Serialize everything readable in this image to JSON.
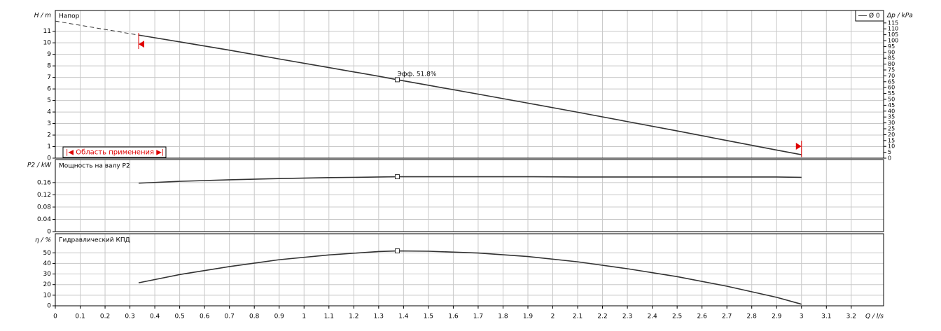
{
  "chart_data": [
    {
      "type": "line",
      "title": "Напор",
      "y_label": "H / m",
      "y2_label": "Δp / kPa",
      "x": [
        0.335,
        0.5,
        0.7,
        0.9,
        1.1,
        1.3,
        1.375,
        1.5,
        1.7,
        1.9,
        2.1,
        2.3,
        2.5,
        2.7,
        2.9,
        3.0
      ],
      "series": [
        {
          "name": "Ø 0",
          "color": "#333333",
          "values": [
            10.67,
            10.08,
            9.36,
            8.6,
            7.85,
            7.1,
            6.8,
            6.32,
            5.55,
            4.77,
            3.98,
            3.17,
            2.36,
            1.53,
            0.7,
            0.3
          ]
        }
      ],
      "extrapolation": {
        "x": [
          0,
          0.335
        ],
        "values": [
          11.88,
          10.67
        ]
      },
      "operating_x": 1.375,
      "annotation": "Эфф. 51.8%",
      "range": [
        0.335,
        3.0
      ],
      "range_label": "|◀ Область применения ▶|",
      "range_color": "#e00000",
      "ylim": [
        0,
        12.8
      ],
      "yticks": [
        0,
        1,
        2,
        3,
        4,
        5,
        6,
        7,
        8,
        9,
        10,
        11
      ],
      "y2lim": [
        0,
        125.6
      ],
      "y2ticks": [
        0,
        5,
        10,
        15,
        20,
        25,
        30,
        35,
        40,
        45,
        50,
        55,
        60,
        65,
        70,
        75,
        80,
        85,
        90,
        95,
        100,
        105,
        110,
        115
      ],
      "grid": true,
      "legend": "top-right"
    },
    {
      "type": "line",
      "title": "Мощность на валу P2",
      "y_label": "P2 / kW",
      "x": [
        0.335,
        0.5,
        0.7,
        0.9,
        1.1,
        1.3,
        1.375,
        1.5,
        1.7,
        1.9,
        2.1,
        2.3,
        2.5,
        2.7,
        2.9,
        3.0
      ],
      "series": [
        {
          "name": "P2",
          "color": "#333333",
          "values": [
            0.158,
            0.164,
            0.169,
            0.173,
            0.176,
            0.178,
            0.179,
            0.179,
            0.179,
            0.179,
            0.178,
            0.178,
            0.178,
            0.178,
            0.178,
            0.177
          ]
        }
      ],
      "operating_x": 1.375,
      "ylim": [
        0,
        0.235
      ],
      "yticks": [
        0,
        0.04,
        0.08,
        0.12,
        0.16
      ],
      "grid": true
    },
    {
      "type": "line",
      "title": "Гидравлический КПД",
      "y_label": "η / %",
      "x_label": "Q / l/s",
      "x": [
        0.335,
        0.5,
        0.7,
        0.9,
        1.1,
        1.3,
        1.375,
        1.5,
        1.7,
        1.9,
        2.1,
        2.3,
        2.5,
        2.7,
        2.9,
        3.0
      ],
      "series": [
        {
          "name": "η",
          "color": "#333333",
          "values": [
            21.7,
            29.5,
            37,
            43.5,
            48,
            51.2,
            51.8,
            51.5,
            49.8,
            46.5,
            41.5,
            35,
            27.5,
            18.5,
            8,
            1.5
          ]
        }
      ],
      "operating_x": 1.375,
      "ylim": [
        0,
        68
      ],
      "yticks": [
        0,
        10,
        20,
        30,
        40,
        50
      ],
      "xlim": [
        0,
        3.33
      ],
      "xticks": [
        0,
        0.1,
        0.2,
        0.3,
        0.4,
        0.5,
        0.6,
        0.7,
        0.8,
        0.9,
        1,
        1.1,
        1.2,
        1.3,
        1.4,
        1.5,
        1.6,
        1.7,
        1.8,
        1.9,
        2,
        2.1,
        2.2,
        2.3,
        2.4,
        2.5,
        2.6,
        2.7,
        2.8,
        2.9,
        3,
        3.1,
        3.2
      ],
      "grid": true
    }
  ]
}
